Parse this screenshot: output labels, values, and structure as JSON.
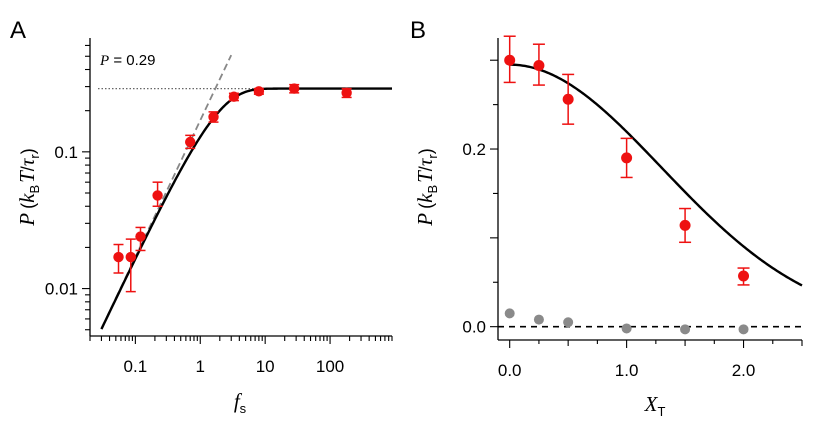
{
  "chart_data": [
    {
      "panel": "A",
      "type": "scatter",
      "xscale": "log",
      "yscale": "log",
      "xlim": [
        0.02,
        900
      ],
      "ylim": [
        0.0045,
        0.68
      ],
      "xlabel": "f",
      "xlabel_sub": "s",
      "ylabel_parts": [
        "P",
        "(",
        "k",
        "B",
        "T",
        "/",
        "τ",
        "r",
        ")"
      ],
      "xticks": [
        0.1,
        1,
        10,
        100
      ],
      "xtick_labels": [
        "0.1",
        "1",
        "10",
        "100"
      ],
      "yticks": [
        0.01,
        0.1
      ],
      "ytick_labels": [
        "0.01",
        "0.1"
      ],
      "plateau_value": 0.29,
      "plateau_label": "= 0.29",
      "plateau_label_var": "P",
      "series": [
        {
          "name": "data",
          "color": "#ee1111",
          "points": [
            {
              "x": 0.055,
              "y": 0.017,
              "lo": 0.013,
              "hi": 0.021
            },
            {
              "x": 0.085,
              "y": 0.017,
              "lo": 0.0095,
              "hi": 0.023
            },
            {
              "x": 0.12,
              "y": 0.024,
              "lo": 0.019,
              "hi": 0.028
            },
            {
              "x": 0.22,
              "y": 0.048,
              "lo": 0.04,
              "hi": 0.06
            },
            {
              "x": 0.7,
              "y": 0.118,
              "lo": 0.106,
              "hi": 0.132
            },
            {
              "x": 1.6,
              "y": 0.18,
              "lo": 0.165,
              "hi": 0.196
            },
            {
              "x": 3.3,
              "y": 0.253,
              "lo": 0.237,
              "hi": 0.268
            },
            {
              "x": 8.0,
              "y": 0.277,
              "lo": 0.264,
              "hi": 0.29
            },
            {
              "x": 28,
              "y": 0.29,
              "lo": 0.27,
              "hi": 0.31
            },
            {
              "x": 180,
              "y": 0.27,
              "lo": 0.25,
              "hi": 0.29
            }
          ]
        }
      ],
      "fit": {
        "name": "fit",
        "plateau": 0.29,
        "slope": 0.17,
        "color": "#000000"
      },
      "asymptote": {
        "name": "linear asymptote",
        "slope": 0.17,
        "color": "#888888"
      }
    },
    {
      "panel": "B",
      "type": "scatter",
      "xlim": [
        -0.1,
        2.5
      ],
      "ylim": [
        -0.015,
        0.325
      ],
      "xlabel": "X",
      "xlabel_sub": "T",
      "ylabel_parts": [
        "P",
        "(",
        "k",
        "B",
        "T",
        "/",
        "τ",
        "r",
        ")"
      ],
      "xticks": [
        0,
        1,
        2
      ],
      "xtick_labels": [
        "0.0",
        "1.0",
        "2.0"
      ],
      "yticks": [
        0,
        0.2
      ],
      "ytick_labels": [
        "0.0",
        "0.2"
      ],
      "zero_line": 0,
      "series": [
        {
          "name": "red data",
          "color": "#ee1111",
          "points": [
            {
              "x": 0.0,
              "y": 0.3,
              "lo": 0.275,
              "hi": 0.327
            },
            {
              "x": 0.25,
              "y": 0.294,
              "lo": 0.272,
              "hi": 0.318
            },
            {
              "x": 0.5,
              "y": 0.256,
              "lo": 0.228,
              "hi": 0.284
            },
            {
              "x": 1.0,
              "y": 0.19,
              "lo": 0.168,
              "hi": 0.212
            },
            {
              "x": 1.5,
              "y": 0.114,
              "lo": 0.095,
              "hi": 0.133
            },
            {
              "x": 2.0,
              "y": 0.057,
              "lo": 0.047,
              "hi": 0.066
            }
          ]
        },
        {
          "name": "gray data",
          "color": "#8a8a8a",
          "points": [
            {
              "x": 0.0,
              "y": 0.015
            },
            {
              "x": 0.25,
              "y": 0.008
            },
            {
              "x": 0.5,
              "y": 0.005
            },
            {
              "x": 1.0,
              "y": -0.002
            },
            {
              "x": 1.5,
              "y": -0.003
            },
            {
              "x": 2.0,
              "y": -0.003
            }
          ]
        }
      ],
      "fit": {
        "name": "gaussian fit",
        "amplitude": 0.295,
        "width": 1.3,
        "x_max": 2.5,
        "color": "#000000"
      }
    }
  ],
  "panel_labels": [
    "A",
    "B"
  ]
}
